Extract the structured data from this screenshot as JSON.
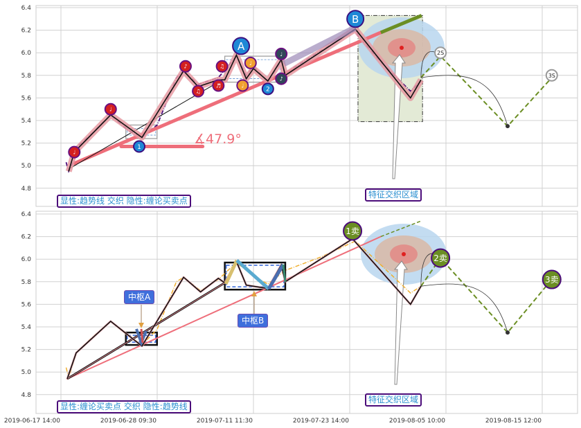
{
  "colors": {
    "trend": "#ee6e7a",
    "projection": "#6b8e23",
    "zigzag": "#111111",
    "price_top": "#4b0c7a",
    "price_bottom": "#f0b030",
    "marker_red": "#d42020",
    "marker_orange": "#f0a030",
    "marker_dark": "#2f4858",
    "marker_blue": "#1e88d6",
    "sell_marker": "#6b8e23",
    "zone_fill": "#e3ead6"
  },
  "x_ticks": [
    "2019-06-17 14:00",
    "2019-06-28 09:30",
    "2019-07-11 11:30",
    "2019-07-23 14:00",
    "2019-08-05 10:00",
    "2019-08-15 12:00"
  ],
  "chart_data": [
    {
      "type": "line",
      "panel": "top",
      "ylim": [
        4.8,
        6.4
      ],
      "y_ticks": [
        "4.8",
        "5.0",
        "5.2",
        "5.4",
        "5.6",
        "5.8",
        "6.0",
        "6.2",
        "6.4"
      ],
      "grid": true,
      "legend_text": "显性:趋势线 交织 隐性:缠论买卖点",
      "zone_label": "特征交织区域",
      "angle_label": "∡47.9°",
      "price": [
        [
          "2019-06-18 04:00",
          5.03
        ],
        [
          "2019-06-18 11:00",
          4.95
        ],
        [
          "2019-06-19 02:00",
          5.05
        ],
        [
          "2019-06-19 07:00",
          5.16
        ],
        [
          "2019-06-21 00:00",
          5.28
        ],
        [
          "2019-06-23 04:00",
          5.45
        ],
        [
          "2019-06-25 00:00",
          5.32
        ],
        [
          "2019-06-26 16:30",
          5.25
        ],
        [
          "2019-06-28 09:30",
          5.36
        ],
        [
          "2019-07-01 00:00",
          5.78
        ],
        [
          "2019-07-01 23:30",
          5.84
        ],
        [
          "2019-07-03 23:00",
          5.72
        ],
        [
          "2019-07-06 17:00",
          5.78
        ],
        [
          "2019-07-09 04:00",
          5.97
        ],
        [
          "2019-07-10 12:00",
          5.8
        ],
        [
          "2019-07-11 11:30",
          5.88
        ],
        [
          "2019-07-13 07:00",
          5.74
        ],
        [
          "2019-07-14 23:30",
          5.93
        ],
        [
          "2019-07-15 11:30",
          5.82
        ],
        [
          "2019-07-20 00:00",
          6.02
        ],
        [
          "2019-07-24 08:00",
          6.2
        ],
        [
          "2019-07-24 16:30",
          6.15
        ],
        [
          "2019-07-27 17:30",
          5.92
        ],
        [
          "2019-07-31 16:30",
          5.66
        ],
        [
          "2019-08-02 02:00",
          5.75
        ]
      ],
      "zigzag": [
        [
          "2019-06-18 11:00",
          4.95
        ],
        [
          "2019-06-19 02:00",
          5.12
        ],
        [
          "2019-06-23 04:00",
          5.45
        ],
        [
          "2019-06-26 16:30",
          5.25
        ],
        [
          "2019-07-01 23:30",
          5.84
        ],
        [
          "2019-07-03 23:00",
          5.7
        ],
        [
          "2019-07-06 17:00",
          5.76
        ],
        [
          "2019-07-07 14:00",
          5.76
        ],
        [
          "2019-07-09 04:00",
          5.98
        ],
        [
          "2019-07-10 12:00",
          5.77
        ],
        [
          "2019-07-11 11:30",
          5.86
        ],
        [
          "2019-07-13 07:00",
          5.75
        ],
        [
          "2019-07-14 23:30",
          5.94
        ],
        [
          "2019-07-15 11:30",
          5.8
        ],
        [
          "2019-07-24 08:00",
          6.21
        ],
        [
          "2019-07-31 16:30",
          5.6
        ],
        [
          "2019-08-02 02:00",
          5.76
        ]
      ],
      "thin_line": [
        [
          "2019-06-18 11:00",
          4.97
        ],
        [
          "2019-07-06 17:00",
          5.74
        ]
      ],
      "trend_line": [
        [
          "2019-06-19 02:00",
          5.02
        ],
        [
          "2019-07-27 17:30",
          6.18
        ]
      ],
      "trend_extension": [
        [
          "2019-07-27 17:30",
          6.18
        ],
        [
          "2019-08-02 04:00",
          6.33
        ]
      ],
      "angle_baseline": [
        [
          "2019-06-24 08:30",
          5.17
        ],
        [
          "2019-07-04 14:00",
          5.17
        ]
      ],
      "projection": [
        [
          "2019-08-02 02:00",
          5.78
        ],
        [
          "2019-08-04 16:30",
          5.97
        ],
        [
          "2019-08-11 21:00",
          5.35
        ],
        [
          "2019-08-16 12:00",
          5.78
        ]
      ],
      "pivots": [
        {
          "from": "2019-06-24 21:00",
          "to": "2019-06-28 09:00",
          "low": 5.24,
          "high": 5.36
        },
        {
          "from": "2019-07-07 14:00",
          "to": "2019-07-14 23:30",
          "low": 5.74,
          "high": 5.97
        }
      ],
      "zone": {
        "from": "2019-07-24 16:30",
        "to": "2019-08-02 07:00",
        "low": 5.39,
        "high": 6.33
      },
      "markers": [
        {
          "kind": "red",
          "label": "♩",
          "date": "2019-06-19 02:00",
          "value": 5.12
        },
        {
          "kind": "red",
          "label": "♩",
          "date": "2019-06-23 04:00",
          "value": 5.5
        },
        {
          "kind": "red",
          "label": "♪",
          "date": "2019-07-02 06:00",
          "value": 5.88
        },
        {
          "kind": "red",
          "label": "♫",
          "date": "2019-07-03 23:00",
          "value": 5.66
        },
        {
          "kind": "red",
          "label": "♬",
          "date": "2019-07-06 17:00",
          "value": 5.71
        },
        {
          "kind": "red",
          "label": "♫",
          "date": "2019-07-07 05:00",
          "value": 5.88
        },
        {
          "kind": "orange",
          "label": "♩",
          "date": "2019-07-10 00:00",
          "value": 5.71
        },
        {
          "kind": "orange",
          "label": "♩",
          "date": "2019-07-11 02:00",
          "value": 5.91
        },
        {
          "kind": "dark",
          "label": "♩",
          "date": "2019-07-14 23:30",
          "value": 5.99
        },
        {
          "kind": "dark",
          "label": "♪",
          "date": "2019-07-14 23:30",
          "value": 5.77
        },
        {
          "kind": "blue",
          "label": "1",
          "date": "2019-06-26 09:00",
          "value": 5.17
        },
        {
          "kind": "blue",
          "label": "2",
          "date": "2019-07-13 07:00",
          "value": 5.68
        },
        {
          "kind": "big",
          "label": "A",
          "date": "2019-07-09 19:00",
          "value": 6.06
        },
        {
          "kind": "big",
          "label": "B",
          "date": "2019-07-24 08:00",
          "value": 6.3
        },
        {
          "kind": "ghost",
          "label": "2S",
          "date": "2019-08-04 16:30",
          "value": 6.0
        },
        {
          "kind": "ghost",
          "label": "3S",
          "date": "2019-08-16 12:00",
          "value": 5.8
        }
      ]
    },
    {
      "type": "line",
      "panel": "bottom",
      "ylim": [
        4.8,
        6.4
      ],
      "y_ticks": [
        "4.8",
        "5.0",
        "5.2",
        "5.4",
        "5.6",
        "5.8",
        "6.0",
        "6.2",
        "6.4"
      ],
      "grid": true,
      "legend_text": "显性:缠论买卖点 交织 隐性:趋势线",
      "zone_label": "特征交织区域",
      "pivot_labels": [
        "中枢A",
        "中枢B"
      ],
      "price": [
        [
          "2019-06-18 04:00",
          5.04
        ],
        [
          "2019-06-18 11:00",
          4.95
        ],
        [
          "2019-06-19 07:00",
          5.17
        ],
        [
          "2019-06-21 00:00",
          5.3
        ],
        [
          "2019-06-23 04:00",
          5.45
        ],
        [
          "2019-06-25 00:00",
          5.33
        ],
        [
          "2019-06-26 16:30",
          5.24
        ],
        [
          "2019-06-28 09:30",
          5.38
        ],
        [
          "2019-07-01 00:00",
          5.8
        ],
        [
          "2019-07-01 23:30",
          5.84
        ],
        [
          "2019-07-04 07:00",
          5.72
        ],
        [
          "2019-07-06 17:00",
          5.82
        ],
        [
          "2019-07-09 04:00",
          5.97
        ],
        [
          "2019-07-11 11:30",
          5.85
        ],
        [
          "2019-07-13 07:00",
          5.78
        ],
        [
          "2019-07-15 11:30",
          5.9
        ],
        [
          "2019-07-20 00:00",
          6.02
        ],
        [
          "2019-07-24 08:00",
          6.16
        ],
        [
          "2019-07-27 17:30",
          5.95
        ],
        [
          "2019-07-31 16:30",
          5.7
        ],
        [
          "2019-08-02 02:00",
          5.76
        ]
      ],
      "zigzag": [
        [
          "2019-06-18 07:00",
          4.94
        ],
        [
          "2019-06-19 07:00",
          5.17
        ],
        [
          "2019-06-23 04:00",
          5.45
        ],
        [
          "2019-06-26 16:30",
          5.23
        ],
        [
          "2019-07-01 23:30",
          5.84
        ],
        [
          "2019-07-04 07:00",
          5.71
        ],
        [
          "2019-07-06 17:00",
          5.83
        ],
        [
          "2019-07-07 14:00",
          5.79
        ],
        [
          "2019-07-09 04:00",
          5.98
        ],
        [
          "2019-07-10 12:00",
          5.77
        ],
        [
          "2019-07-13 07:00",
          5.74
        ],
        [
          "2019-07-14 23:30",
          5.95
        ],
        [
          "2019-07-15 11:30",
          5.8
        ],
        [
          "2019-07-23 23:00",
          6.18
        ],
        [
          "2019-07-31 16:30",
          5.6
        ],
        [
          "2019-08-02 02:00",
          5.76
        ]
      ],
      "thin_line": [
        [
          "2019-06-18 07:00",
          4.94
        ],
        [
          "2019-07-07 14:00",
          5.79
        ]
      ],
      "trend_line": [
        [
          "2019-06-18 07:00",
          4.94
        ],
        [
          "2019-07-27 17:30",
          6.2
        ]
      ],
      "trend_extension": [
        [
          "2019-07-27 17:30",
          6.2
        ],
        [
          "2019-08-02 04:00",
          6.34
        ]
      ],
      "projection": [
        [
          "2019-08-02 02:00",
          5.76
        ],
        [
          "2019-08-04 16:30",
          6.01
        ],
        [
          "2019-08-11 21:00",
          5.35
        ],
        [
          "2019-08-16 12:00",
          5.82
        ]
      ],
      "pivots": [
        {
          "from": "2019-06-24 21:00",
          "to": "2019-06-28 09:00",
          "low": 5.24,
          "high": 5.35
        },
        {
          "from": "2019-07-07 14:00",
          "to": "2019-07-15 11:30",
          "low": 5.73,
          "high": 5.97
        }
      ],
      "markers": [
        {
          "kind": "sell",
          "label": "1卖",
          "date": "2019-07-23 23:00",
          "value": 6.25
        },
        {
          "kind": "sell",
          "label": "2卖",
          "date": "2019-08-04 16:30",
          "value": 6.01
        },
        {
          "kind": "sell",
          "label": "3卖",
          "date": "2019-08-16 12:00",
          "value": 5.82
        }
      ]
    }
  ]
}
